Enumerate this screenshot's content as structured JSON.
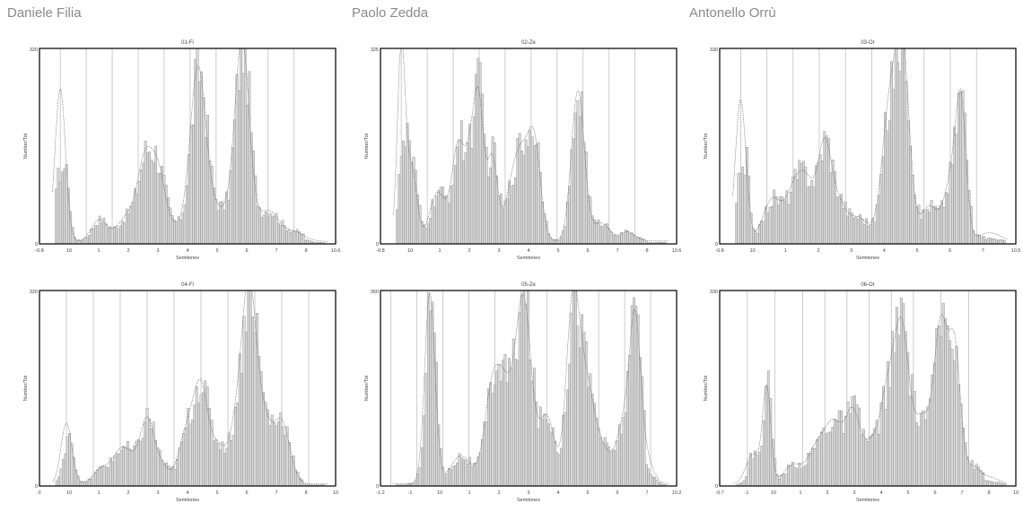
{
  "authors": [
    "Daniele Filia",
    "Paolo Zedda",
    "Antonello Orrù"
  ],
  "colors": {
    "bar_fill": "#d9d9d9",
    "bar_stroke": "#777777",
    "frame": "#111111",
    "guide": "#b8b8b8",
    "curve": "#555555"
  },
  "chart_data": [
    {
      "type": "bar",
      "title": "01-Fi",
      "xlabel": "Semitones",
      "ylabel": "Number/Tot",
      "xlim": [
        -0.8,
        10.6
      ],
      "x_ticks": [
        "-0.8",
        "10",
        "1",
        "2",
        "3",
        "4",
        "5",
        "6",
        "7",
        "8",
        "10.6"
      ],
      "y_ticks": [
        "0",
        "320"
      ],
      "guides": [
        0,
        1,
        2,
        3,
        4,
        5,
        6,
        7,
        8,
        9
      ],
      "peaks": [
        [
          0,
          250,
          0.2
        ],
        [
          1.5,
          35,
          0.3
        ],
        [
          2.6,
          40,
          0.4
        ],
        [
          3.3,
          130,
          0.3
        ],
        [
          3.8,
          80,
          0.25
        ],
        [
          4.3,
          25,
          0.5
        ],
        [
          5.3,
          270,
          0.3
        ],
        [
          6.1,
          50,
          0.5
        ],
        [
          7,
          320,
          0.28
        ],
        [
          8,
          50,
          0.4
        ],
        [
          9,
          15,
          0.4
        ]
      ],
      "baseline": 10,
      "ylim": [
        0,
        320
      ]
    },
    {
      "type": "bar",
      "title": "02-Ze",
      "xlabel": "Semitones",
      "ylabel": "Number/Tot",
      "xlim": [
        -0.8,
        10.6
      ],
      "x_ticks": [
        "-0.8",
        "10",
        "1",
        "2",
        "3",
        "4",
        "5",
        "6",
        "7",
        "8",
        "10.6"
      ],
      "y_ticks": [
        "0",
        "325"
      ],
      "guides": [
        0,
        1,
        2,
        3,
        4,
        5,
        6,
        7,
        8,
        9
      ],
      "peaks": [
        [
          0,
          320,
          0.15
        ],
        [
          0.4,
          120,
          0.2
        ],
        [
          1.4,
          80,
          0.3
        ],
        [
          2.2,
          160,
          0.25
        ],
        [
          2.7,
          130,
          0.2
        ],
        [
          3,
          200,
          0.18
        ],
        [
          3.5,
          140,
          0.2
        ],
        [
          4.2,
          70,
          0.25
        ],
        [
          4.6,
          120,
          0.25
        ],
        [
          5.1,
          170,
          0.25
        ],
        [
          6.8,
          250,
          0.25
        ],
        [
          7.7,
          30,
          0.3
        ],
        [
          8.7,
          15,
          0.3
        ]
      ],
      "baseline": 12,
      "ylim": [
        0,
        325
      ]
    },
    {
      "type": "bar",
      "title": "03-Or",
      "xlabel": "Semitones",
      "ylabel": "Number/Tot",
      "xlim": [
        -0.8,
        10.5
      ],
      "x_ticks": [
        "-0.8",
        "10",
        "1",
        "2",
        "3",
        "4",
        "5",
        "6",
        "7",
        "10.5"
      ],
      "y_ticks": [
        "0",
        "330"
      ],
      "guides": [
        0,
        1,
        2,
        3,
        4,
        5,
        6,
        7,
        8,
        9
      ],
      "peaks": [
        [
          0,
          240,
          0.2
        ],
        [
          1.2,
          70,
          0.35
        ],
        [
          2.1,
          90,
          0.35
        ],
        [
          2.6,
          70,
          0.3
        ],
        [
          3.2,
          150,
          0.25
        ],
        [
          3.7,
          60,
          0.3
        ],
        [
          4.5,
          40,
          0.4
        ],
        [
          5.7,
          230,
          0.3
        ],
        [
          6.2,
          290,
          0.25
        ],
        [
          7.2,
          60,
          0.35
        ],
        [
          8,
          90,
          0.25
        ],
        [
          8.4,
          230,
          0.2
        ],
        [
          9.5,
          15,
          0.4
        ]
      ],
      "baseline": 10,
      "ylim": [
        0,
        330
      ]
    },
    {
      "type": "bar",
      "title": "04-Fi",
      "xlabel": "Semitones",
      "ylabel": "Number/Tot",
      "xlim": [
        -1,
        10
      ],
      "x_ticks": [
        "0",
        "10",
        "1",
        "2",
        "3",
        "4",
        "5",
        "6",
        "7",
        "8",
        "10"
      ],
      "y_ticks": [
        "0",
        "320"
      ],
      "guides": [
        0,
        1,
        2,
        3,
        4,
        5,
        6,
        7,
        8,
        9
      ],
      "peaks": [
        [
          0,
          100,
          0.2
        ],
        [
          1.3,
          25,
          0.3
        ],
        [
          2,
          50,
          0.3
        ],
        [
          2.5,
          30,
          0.3
        ],
        [
          3,
          95,
          0.25
        ],
        [
          3.5,
          30,
          0.3
        ],
        [
          4.5,
          90,
          0.3
        ],
        [
          5,
          140,
          0.25
        ],
        [
          5.6,
          60,
          0.3
        ],
        [
          6.4,
          110,
          0.3
        ],
        [
          6.8,
          270,
          0.25
        ],
        [
          7.3,
          100,
          0.3
        ],
        [
          8,
          100,
          0.3
        ]
      ],
      "baseline": 8,
      "ylim": [
        0,
        320
      ]
    },
    {
      "type": "bar",
      "title": "05-Ze",
      "xlabel": "Semitones",
      "ylabel": "Number/Tot",
      "xlim": [
        -1.2,
        10.2
      ],
      "x_ticks": [
        "-1.2",
        "-1",
        "10",
        "1",
        "2",
        "3",
        "4",
        "5",
        "6",
        "7",
        "10.2"
      ],
      "y_ticks": [
        "0",
        "350"
      ],
      "guides": [
        -0.8,
        0.2,
        1.2,
        2.2,
        3.2,
        4.2,
        5.2,
        6.2,
        7.2,
        8.2,
        9.2
      ],
      "peaks": [
        [
          0.7,
          340,
          0.2
        ],
        [
          1.9,
          50,
          0.4
        ],
        [
          3.1,
          160,
          0.3
        ],
        [
          3.6,
          140,
          0.3
        ],
        [
          4.3,
          330,
          0.3
        ],
        [
          5.2,
          120,
          0.3
        ],
        [
          6.2,
          310,
          0.25
        ],
        [
          6.7,
          160,
          0.3
        ],
        [
          7.3,
          60,
          0.35
        ],
        [
          8.2,
          110,
          0.3
        ],
        [
          8.6,
          230,
          0.2
        ],
        [
          8.9,
          60,
          0.3
        ]
      ],
      "baseline": 10,
      "ylim": [
        0,
        350
      ]
    },
    {
      "type": "bar",
      "title": "06-Or",
      "xlabel": "Semitones",
      "ylabel": "Number/Tot",
      "xlim": [
        -0.7,
        10
      ],
      "x_ticks": [
        "-0.7",
        "-1",
        "10",
        "1",
        "2",
        "3",
        "4",
        "5",
        "6",
        "7",
        "8",
        "10"
      ],
      "y_ticks": [
        "0",
        "330"
      ],
      "guides": [
        0.3,
        1.3,
        2.3,
        3.1,
        3.9,
        4.7,
        5.5,
        6.3,
        7.3,
        8.3
      ],
      "peaks": [
        [
          0.5,
          50,
          0.25
        ],
        [
          1,
          160,
          0.15
        ],
        [
          1.9,
          30,
          0.3
        ],
        [
          2.9,
          70,
          0.4
        ],
        [
          3.5,
          80,
          0.3
        ],
        [
          4.1,
          110,
          0.25
        ],
        [
          4.7,
          60,
          0.3
        ],
        [
          5.4,
          160,
          0.3
        ],
        [
          5.9,
          230,
          0.25
        ],
        [
          6.6,
          110,
          0.3
        ],
        [
          7.3,
          270,
          0.25
        ],
        [
          7.8,
          210,
          0.2
        ],
        [
          8.4,
          30,
          0.3
        ],
        [
          9.1,
          10,
          0.3
        ]
      ],
      "baseline": 8,
      "ylim": [
        0,
        330
      ]
    }
  ]
}
